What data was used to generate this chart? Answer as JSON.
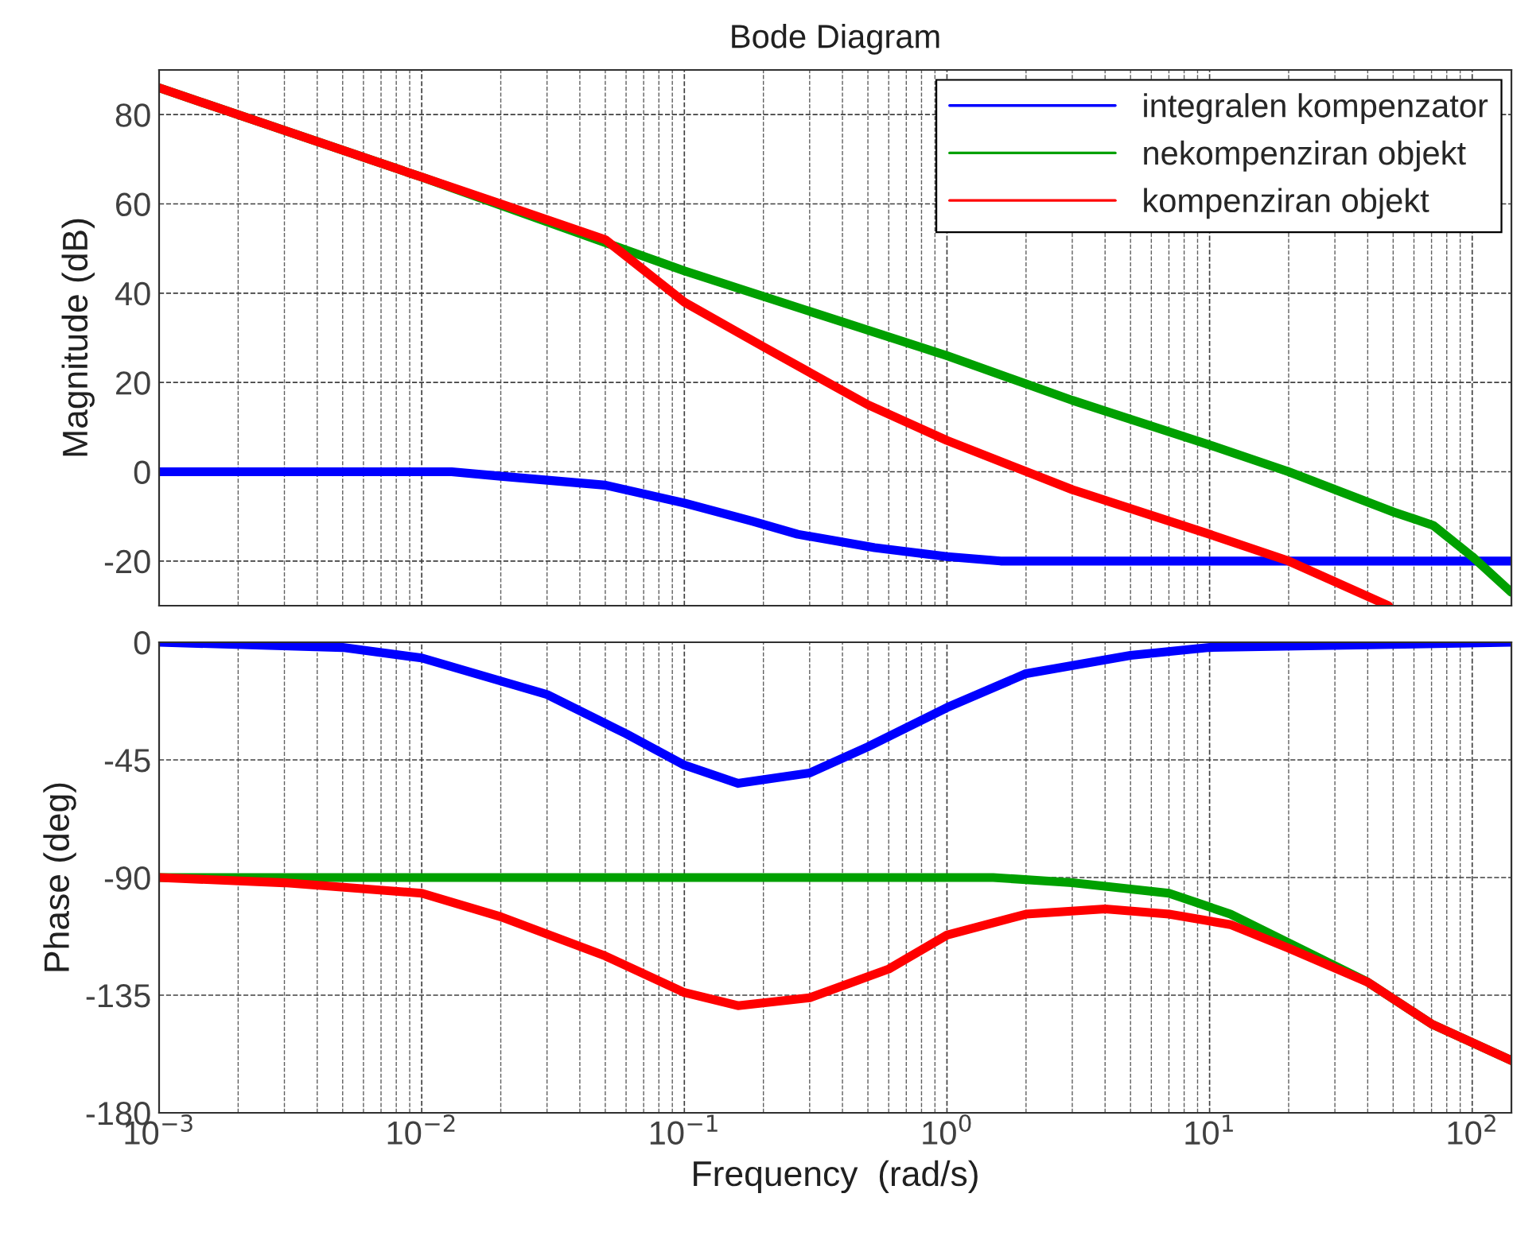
{
  "chart_data": [
    {
      "type": "line",
      "title": "Bode Diagram",
      "ylabel": "Magnitude (dB)",
      "log": "x",
      "grid": true,
      "legend": "top right",
      "tick_labels": "y",
      "xlim": [
        0.001,
        141
      ],
      "ylim": [
        -30,
        90
      ],
      "yticks": [
        -20,
        0,
        20,
        40,
        60,
        80
      ],
      "series": [
        {
          "name": "integralen kompenzator",
          "color": "#0000ff",
          "x": [
            0.001,
            0.013,
            0.02,
            0.05,
            0.1,
            0.18,
            0.27,
            0.53,
            1,
            1.6,
            141
          ],
          "values": [
            0,
            0,
            -1,
            -3,
            -7,
            -11,
            -14,
            -17,
            -19,
            -20,
            -20
          ]
        },
        {
          "name": "nekompenziran objekt",
          "color": "#00a000",
          "x": [
            0.001,
            0.01,
            0.1,
            1,
            3,
            10,
            20,
            50,
            71,
            100,
            141
          ],
          "values": [
            86,
            66,
            45,
            26,
            16,
            6,
            0,
            -9,
            -12,
            -19,
            -27
          ]
        },
        {
          "name": "kompenziran objekt",
          "color": "#ff0000",
          "x": [
            0.001,
            0.01,
            0.02,
            0.05,
            0.1,
            0.2,
            0.5,
            1,
            3,
            10,
            20,
            48
          ],
          "values": [
            86,
            66,
            60,
            52,
            38,
            28,
            15,
            7,
            -4,
            -14,
            -20,
            -30
          ]
        }
      ]
    },
    {
      "type": "line",
      "xlabel": "Frequency  (rad/s)",
      "ylabel": "Phase (deg)",
      "log": "x",
      "grid": true,
      "xlim": [
        0.001,
        141
      ],
      "ylim": [
        -180,
        0
      ],
      "yticks": [
        -180,
        -135,
        -90,
        -45,
        0
      ],
      "xticks": [
        {
          "value": 0.001,
          "label": "10$^{−3}$"
        },
        {
          "value": 0.01,
          "label": "10$^{−2}$"
        },
        {
          "value": 0.1,
          "label": "10$^{−1}$"
        },
        {
          "value": 1,
          "label": "10$^{0}$"
        },
        {
          "value": 10,
          "label": "10$^{1}$"
        },
        {
          "value": 100,
          "label": "10$^{2}$"
        }
      ],
      "series": [
        {
          "color": "#0000ff",
          "x": [
            0.001,
            0.005,
            0.01,
            0.03,
            0.06,
            0.1,
            0.16,
            0.3,
            0.5,
            1,
            2,
            5,
            10,
            141
          ],
          "values": [
            0,
            -2,
            -6,
            -20,
            -35,
            -47,
            -54,
            -50,
            -40,
            -25,
            -12,
            -5,
            -2,
            0
          ]
        },
        {
          "color": "#00a000",
          "x": [
            0.001,
            1.5,
            3,
            7,
            12,
            20,
            40,
            70,
            141
          ],
          "values": [
            -90,
            -90,
            -92,
            -96,
            -104,
            -115,
            -130,
            -146,
            -160
          ]
        },
        {
          "color": "#ff0000",
          "x": [
            0.001,
            0.003,
            0.01,
            0.02,
            0.05,
            0.1,
            0.16,
            0.3,
            0.6,
            1,
            2,
            4,
            7,
            12,
            20,
            40,
            70,
            141
          ],
          "values": [
            -90,
            -92,
            -96,
            -105,
            -120,
            -134,
            -139,
            -136,
            -125,
            -112,
            -104,
            -102,
            -104,
            -108,
            -117,
            -130,
            -146,
            -160
          ]
        }
      ]
    }
  ]
}
